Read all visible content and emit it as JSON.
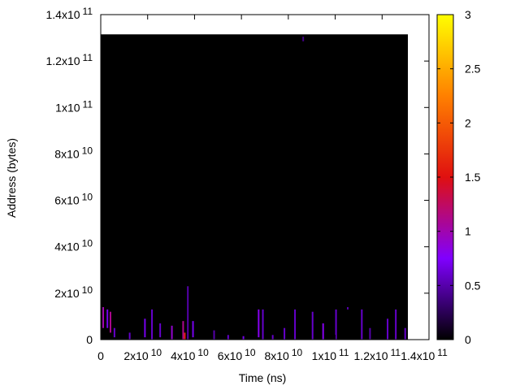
{
  "chart_data": {
    "type": "heatmap",
    "title": "",
    "xlabel": "Time (ns)",
    "ylabel": "Address (bytes)",
    "xlim": [
      0,
      140000000000
    ],
    "ylim": [
      0,
      140000000000
    ],
    "x_ticks": [
      {
        "value": 0,
        "mantissa": "0",
        "exp": ""
      },
      {
        "value": 20000000000,
        "mantissa": "2x10",
        "exp": "10"
      },
      {
        "value": 40000000000,
        "mantissa": "4x10",
        "exp": "10"
      },
      {
        "value": 60000000000,
        "mantissa": "6x10",
        "exp": "10"
      },
      {
        "value": 80000000000,
        "mantissa": "8x10",
        "exp": "10"
      },
      {
        "value": 100000000000,
        "mantissa": "1x10",
        "exp": "11"
      },
      {
        "value": 120000000000,
        "mantissa": "1.2x10",
        "exp": "11"
      },
      {
        "value": 140000000000,
        "mantissa": "1.4x10",
        "exp": "11"
      }
    ],
    "y_ticks": [
      {
        "value": 0,
        "mantissa": "0",
        "exp": ""
      },
      {
        "value": 20000000000,
        "mantissa": "2x10",
        "exp": "10"
      },
      {
        "value": 40000000000,
        "mantissa": "4x10",
        "exp": "10"
      },
      {
        "value": 60000000000,
        "mantissa": "6x10",
        "exp": "10"
      },
      {
        "value": 80000000000,
        "mantissa": "8x10",
        "exp": "10"
      },
      {
        "value": 100000000000,
        "mantissa": "1x10",
        "exp": "11"
      },
      {
        "value": 120000000000,
        "mantissa": "1.2x10",
        "exp": "11"
      },
      {
        "value": 140000000000,
        "mantissa": "1.4x10",
        "exp": "11"
      }
    ],
    "colorbar": {
      "range": [
        0,
        3
      ],
      "ticks": [
        "0",
        "0.5",
        "1",
        "1.5",
        "2",
        "2.5",
        "3"
      ],
      "palette": [
        "#000000",
        "#8000ff",
        "#e01010",
        "#ff8000",
        "#ffff00"
      ]
    },
    "background_block": {
      "x": [
        0,
        131000000000
      ],
      "y": [
        0,
        131500000000
      ],
      "value": 0,
      "color": "#000000"
    },
    "hot_cells": [
      {
        "x": 700000000,
        "y": 5000000000,
        "h": 9000000000,
        "value": 1.0
      },
      {
        "x": 2500000000,
        "y": 5000000000,
        "h": 8000000000,
        "value": 0.7
      },
      {
        "x": 3800000000,
        "y": 3000000000,
        "h": 9000000000,
        "value": 1.1
      },
      {
        "x": 5500000000,
        "y": 1000000000,
        "h": 4000000000,
        "value": 0.6
      },
      {
        "x": 12000000000,
        "y": 0,
        "h": 3000000000,
        "value": 0.6
      },
      {
        "x": 18500000000,
        "y": 1000000000,
        "h": 8000000000,
        "value": 0.7
      },
      {
        "x": 21500000000,
        "y": 0,
        "h": 13000000000,
        "value": 0.6
      },
      {
        "x": 25000000000,
        "y": 1000000000,
        "h": 6000000000,
        "value": 0.6
      },
      {
        "x": 30000000000,
        "y": 0,
        "h": 6000000000,
        "value": 0.9
      },
      {
        "x": 34800000000,
        "y": 0,
        "h": 8000000000,
        "value": 1.1
      },
      {
        "x": 36800000000,
        "y": 0,
        "h": 23000000000,
        "value": 0.5
      },
      {
        "x": 39000000000,
        "y": 1000000000,
        "h": 7000000000,
        "value": 0.7
      },
      {
        "x": 48000000000,
        "y": 0,
        "h": 4000000000,
        "value": 0.5
      },
      {
        "x": 54000000000,
        "y": 0,
        "h": 2000000000,
        "value": 0.6
      },
      {
        "x": 60500000000,
        "y": 0,
        "h": 1500000000,
        "value": 0.7
      },
      {
        "x": 67000000000,
        "y": 1000000000,
        "h": 12000000000,
        "value": 0.8
      },
      {
        "x": 68800000000,
        "y": 0,
        "h": 13000000000,
        "value": 0.6
      },
      {
        "x": 73000000000,
        "y": 0,
        "h": 2000000000,
        "value": 0.6
      },
      {
        "x": 78000000000,
        "y": 0,
        "h": 5000000000,
        "value": 0.6
      },
      {
        "x": 82500000000,
        "y": 0,
        "h": 13000000000,
        "value": 0.6
      },
      {
        "x": 86000000000,
        "y": 128500000000,
        "h": 2000000000,
        "value": 0.4
      },
      {
        "x": 90000000000,
        "y": 0,
        "h": 12000000000,
        "value": 0.6
      },
      {
        "x": 94500000000,
        "y": 0,
        "h": 7000000000,
        "value": 0.8
      },
      {
        "x": 100000000000,
        "y": 0,
        "h": 13000000000,
        "value": 0.6
      },
      {
        "x": 105000000000,
        "y": 13000000000,
        "h": 1000000000,
        "value": 0.5
      },
      {
        "x": 111000000000,
        "y": 0,
        "h": 13000000000,
        "value": 0.6
      },
      {
        "x": 114500000000,
        "y": 0,
        "h": 5000000000,
        "value": 0.5
      },
      {
        "x": 122000000000,
        "y": 0,
        "h": 9000000000,
        "value": 0.6
      },
      {
        "x": 125500000000,
        "y": 0,
        "h": 13000000000,
        "value": 0.6
      },
      {
        "x": 129500000000,
        "y": 0,
        "h": 5000000000,
        "value": 0.6
      },
      {
        "x": 35500000000,
        "y": 0,
        "h": 3000000000,
        "value": 1.6
      }
    ]
  }
}
